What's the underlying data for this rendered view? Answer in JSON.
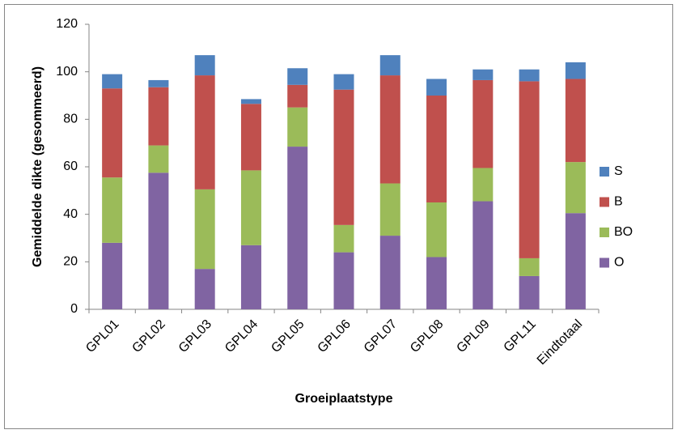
{
  "chart_data": {
    "type": "stacked_bar",
    "x_label": "Groeiplaatstype",
    "y_label": "Gemiddelde dikte (gesommeerd)",
    "categories": [
      "GPL01",
      "GPL02",
      "GPL03",
      "GPL04",
      "GPL05",
      "GPL06",
      "GPL07",
      "GPL08",
      "GPL09",
      "GPL11",
      "Eindtotaal"
    ],
    "series": [
      {
        "name": "O",
        "color": "#8064a2",
        "values": [
          28,
          57.5,
          17,
          27,
          68.5,
          24,
          31,
          22,
          45.5,
          14,
          40.5
        ]
      },
      {
        "name": "BO",
        "color": "#9bbb59",
        "values": [
          27.5,
          11.5,
          33.5,
          31.5,
          16.5,
          11.5,
          22,
          23,
          14,
          7.5,
          21.5
        ]
      },
      {
        "name": "B",
        "color": "#c0504d",
        "values": [
          37.5,
          24.5,
          48,
          28,
          9.5,
          57,
          45.5,
          45,
          37,
          74.5,
          35
        ]
      },
      {
        "name": "S",
        "color": "#4f81bd",
        "values": [
          6,
          3,
          8.5,
          2,
          7,
          6.5,
          8.5,
          7,
          4.5,
          5,
          7
        ]
      }
    ],
    "ylim": [
      0,
      120
    ],
    "yticks": [
      0,
      20,
      40,
      60,
      80,
      100,
      120
    ],
    "grid": false,
    "legend": "right"
  }
}
